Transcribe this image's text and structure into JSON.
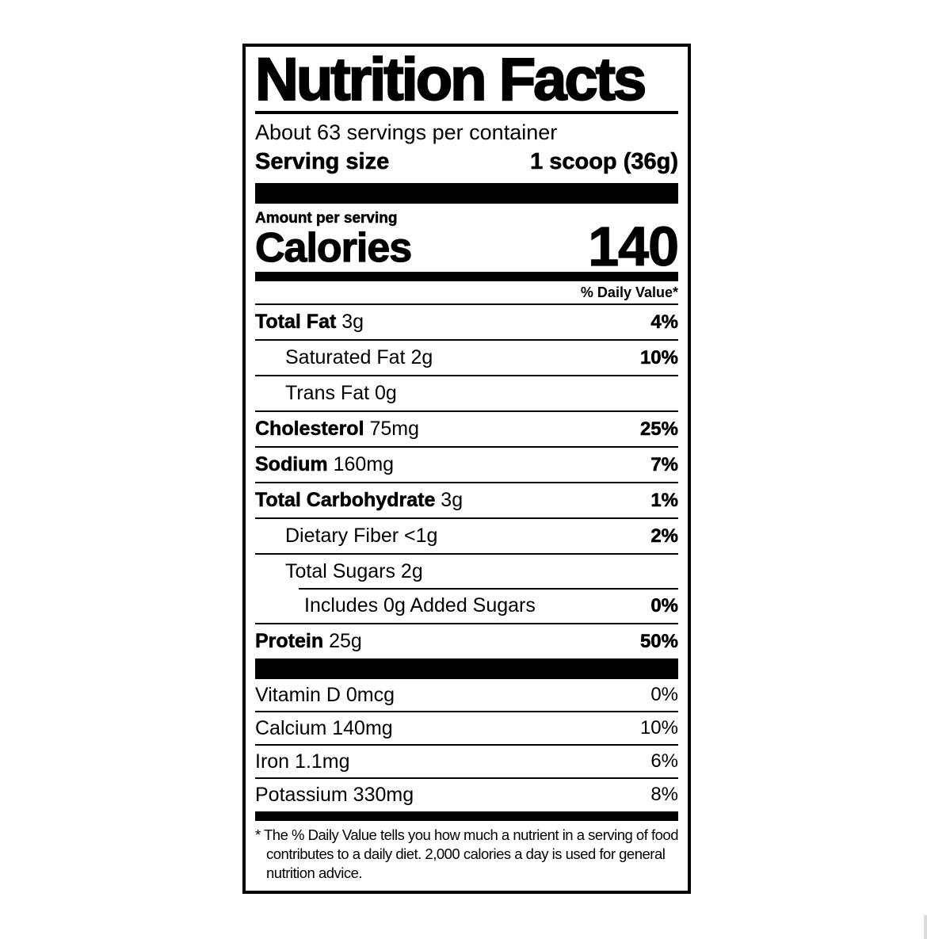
{
  "label": {
    "title": "Nutrition Facts",
    "servings_per_container": "About 63 servings per container",
    "serving_size_label": "Serving size",
    "serving_size_value": "1 scoop (36g)",
    "amount_per_serving": "Amount per serving",
    "calories_label": "Calories",
    "calories_value": "140",
    "daily_value_header": "% Daily Value*",
    "nutrients": [
      {
        "name": "Total Fat",
        "amount": "3g",
        "dv": "4%"
      },
      {
        "name": "Saturated Fat",
        "amount": "2g",
        "dv": "10%"
      },
      {
        "name": "Trans Fat",
        "amount": "0g",
        "dv": ""
      },
      {
        "name": "Cholesterol",
        "amount": "75mg",
        "dv": "25%"
      },
      {
        "name": "Sodium",
        "amount": "160mg",
        "dv": "7%"
      },
      {
        "name": "Total Carbohydrate",
        "amount": "3g",
        "dv": "1%"
      },
      {
        "name": "Dietary Fiber",
        "amount": "<1g",
        "dv": "2%"
      },
      {
        "name": "Total Sugars",
        "amount": "2g",
        "dv": ""
      },
      {
        "name": "Includes 0g Added Sugars",
        "amount": "",
        "dv": "0%"
      },
      {
        "name": "Protein",
        "amount": "25g",
        "dv": "50%"
      }
    ],
    "micronutrients": [
      {
        "name": "Vitamin D",
        "amount": "0mcg",
        "dv": "0%"
      },
      {
        "name": "Calcium",
        "amount": "140mg",
        "dv": "10%"
      },
      {
        "name": "Iron",
        "amount": "1.1mg",
        "dv": "6%"
      },
      {
        "name": "Potassium",
        "amount": "330mg",
        "dv": "8%"
      }
    ],
    "footnote": "* The % Daily Value tells you how much a nutrient in a serving of food contributes to a daily diet. 2,000 calories a day is used for general nutrition advice."
  },
  "colors": {
    "text": "#000000",
    "background": "#ffffff"
  }
}
